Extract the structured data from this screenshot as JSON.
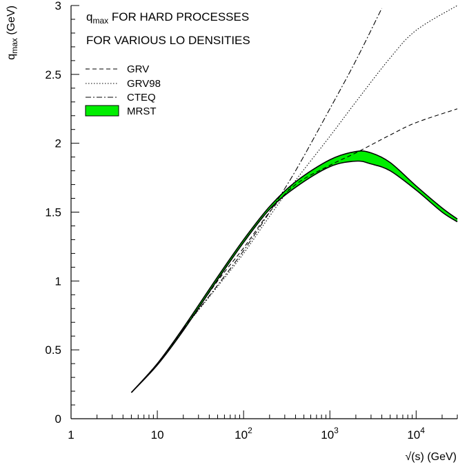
{
  "chart_data": {
    "type": "line",
    "title": "",
    "annotation": {
      "line1_main": "q",
      "line1_sub": "max",
      "line1_rest": " FOR HARD PROCESSES",
      "line2": "FOR VARIOUS LO DENSITIES"
    },
    "xlabel": "√(s) (GeV)",
    "ylabel_main": "q",
    "ylabel_sub": "max",
    "ylabel_unit": " (GeV)",
    "x_scale": "log",
    "xlim": [
      1,
      30000
    ],
    "ylim": [
      0,
      3
    ],
    "x_ticks": [
      {
        "value": 1,
        "base": "1",
        "exp": ""
      },
      {
        "value": 10,
        "base": "10",
        "exp": ""
      },
      {
        "value": 100,
        "base": "10",
        "exp": "2"
      },
      {
        "value": 1000,
        "base": "10",
        "exp": "3"
      },
      {
        "value": 10000,
        "base": "10",
        "exp": "4"
      }
    ],
    "y_ticks": [
      {
        "value": 0,
        "label": "0"
      },
      {
        "value": 0.5,
        "label": "0.5"
      },
      {
        "value": 1,
        "label": "1"
      },
      {
        "value": 1.5,
        "label": "1.5"
      },
      {
        "value": 2,
        "label": "2"
      },
      {
        "value": 2.5,
        "label": "2.5"
      },
      {
        "value": 3,
        "label": "3"
      }
    ],
    "grid": false,
    "legend_position": "top-left",
    "series": [
      {
        "name": "GRV",
        "style": "dashed",
        "color": "#000000",
        "points": [
          [
            5,
            0.19
          ],
          [
            10,
            0.4
          ],
          [
            20,
            0.65
          ],
          [
            50,
            1.0
          ],
          [
            100,
            1.24
          ],
          [
            200,
            1.5
          ],
          [
            400,
            1.7
          ],
          [
            1000,
            1.84
          ],
          [
            2000,
            1.93
          ],
          [
            5000,
            2.06
          ],
          [
            10000,
            2.15
          ],
          [
            30000,
            2.25
          ]
        ]
      },
      {
        "name": "GRV98",
        "style": "dotted",
        "color": "#000000",
        "points": [
          [
            5,
            0.19
          ],
          [
            10,
            0.4
          ],
          [
            20,
            0.65
          ],
          [
            50,
            0.96
          ],
          [
            100,
            1.2
          ],
          [
            200,
            1.47
          ],
          [
            400,
            1.73
          ],
          [
            1000,
            2.05
          ],
          [
            2000,
            2.3
          ],
          [
            5000,
            2.62
          ],
          [
            10000,
            2.82
          ],
          [
            30000,
            3.0
          ]
        ]
      },
      {
        "name": "CTEQ",
        "style": "dash-dot",
        "color": "#000000",
        "points": [
          [
            5,
            0.19
          ],
          [
            10,
            0.4
          ],
          [
            20,
            0.65
          ],
          [
            50,
            0.97
          ],
          [
            100,
            1.22
          ],
          [
            200,
            1.5
          ],
          [
            400,
            1.8
          ],
          [
            1000,
            2.25
          ],
          [
            2000,
            2.6
          ],
          [
            4000,
            2.98
          ]
        ]
      }
    ],
    "band": {
      "name": "MRST",
      "color": "#00ee00",
      "edge_color": "#000000",
      "x": [
        5,
        10,
        20,
        50,
        100,
        200,
        400,
        1000,
        2000,
        3000,
        5000,
        10000,
        20000,
        30000
      ],
      "upper": [
        0.19,
        0.4,
        0.66,
        1.03,
        1.3,
        1.54,
        1.72,
        1.88,
        1.94,
        1.93,
        1.86,
        1.69,
        1.53,
        1.45
      ],
      "lower": [
        0.19,
        0.39,
        0.64,
        1.01,
        1.28,
        1.52,
        1.68,
        1.83,
        1.87,
        1.85,
        1.8,
        1.66,
        1.5,
        1.43
      ]
    }
  }
}
